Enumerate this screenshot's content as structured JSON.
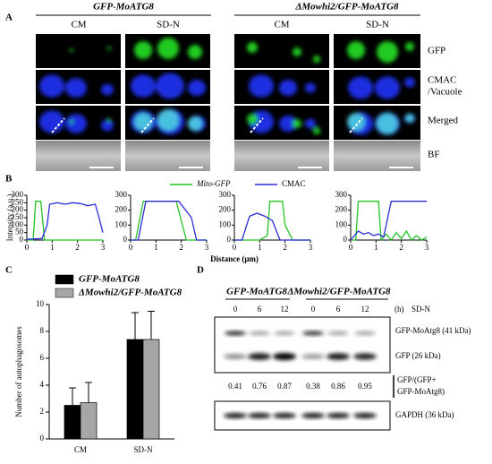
{
  "panel_a": {
    "label": "A",
    "groups": [
      "GFP-MoATG8",
      "ΔMowhi2/GFP-MoATG8"
    ],
    "columns": [
      "CM",
      "SD-N",
      "CM",
      "SD-N"
    ],
    "rows": [
      "GFP",
      "CMAC",
      "/Vacuole",
      "Merged",
      "BF"
    ]
  },
  "panel_b": {
    "label": "B",
    "ylabel": "Intensity (a.u.)",
    "xlabel": "Distance (μm)"
  },
  "panel_c": {
    "label": "C"
  },
  "panel_d": {
    "label": "D",
    "groups": [
      "GFP-MoATG8",
      "ΔMowhi2/GFP-MoATG8"
    ],
    "lanes": [
      "0",
      "6",
      "12",
      "0",
      "6",
      "12"
    ],
    "unit": "(h)",
    "treatment": "SD-N",
    "bands": [
      "GFP-MoAtg8 (41 kDa)",
      "GFP (26 kDa)"
    ],
    "ratio_label": [
      "GFP/(GFP+",
      "GFP-MoAtg8)"
    ],
    "ratios": [
      "0.41",
      "0.76",
      "0.87",
      "0.38",
      "0.86",
      "0.95"
    ],
    "loading": "GAPDH (36 kDa)"
  },
  "chart_data": [
    {
      "type": "line",
      "xlim": [
        0,
        3
      ],
      "ylim": [
        0,
        300
      ],
      "xticks": [
        0,
        1,
        2,
        3
      ],
      "yticks": [
        0,
        50,
        100,
        150,
        200,
        250,
        300
      ],
      "series": [
        {
          "name": "Mito-GFP",
          "color": "#22c422",
          "x": [
            0,
            0.25,
            0.35,
            0.55,
            0.7,
            3
          ],
          "values": [
            0,
            0,
            260,
            260,
            0,
            0
          ]
        },
        {
          "name": "CMAC",
          "color": "#2b2bd9",
          "x": [
            0,
            0.6,
            0.8,
            0.9,
            1.2,
            1.5,
            1.8,
            2.1,
            2.4,
            2.7,
            2.85,
            3
          ],
          "values": [
            5,
            10,
            100,
            240,
            250,
            240,
            250,
            245,
            230,
            240,
            150,
            50
          ]
        }
      ]
    },
    {
      "type": "line",
      "xlim": [
        0,
        3
      ],
      "ylim": [
        0,
        300
      ],
      "xticks": [
        0,
        1,
        2,
        3
      ],
      "yticks": [
        0,
        100,
        200,
        300
      ],
      "series": [
        {
          "color": "#22c422",
          "x": [
            0,
            0.2,
            0.5,
            1.8,
            2.2,
            3
          ],
          "values": [
            0,
            0,
            260,
            260,
            0,
            0
          ]
        },
        {
          "color": "#2b2bd9",
          "x": [
            0,
            0.3,
            0.6,
            1.9,
            2.4,
            2.6,
            3
          ],
          "values": [
            0,
            0,
            260,
            260,
            150,
            0,
            0
          ]
        }
      ]
    },
    {
      "type": "line",
      "xlim": [
        0,
        3
      ],
      "ylim": [
        0,
        300
      ],
      "xticks": [
        0,
        1,
        2,
        3
      ],
      "yticks": [
        0,
        100,
        200,
        300
      ],
      "series": [
        {
          "color": "#22c422",
          "x": [
            0,
            1.0,
            1.3,
            1.4,
            1.9,
            2.0,
            2.3,
            3
          ],
          "values": [
            0,
            0,
            30,
            260,
            260,
            100,
            0,
            0
          ]
        },
        {
          "color": "#2b2bd9",
          "x": [
            0,
            0.3,
            0.6,
            0.9,
            1.2,
            1.5,
            1.8,
            2.5,
            3
          ],
          "values": [
            0,
            0,
            160,
            180,
            160,
            130,
            0,
            0,
            0
          ]
        }
      ]
    },
    {
      "type": "line",
      "xlim": [
        0,
        3
      ],
      "ylim": [
        0,
        300
      ],
      "xticks": [
        0,
        1,
        2,
        3
      ],
      "yticks": [
        0,
        100,
        200,
        300
      ],
      "series": [
        {
          "color": "#22c422",
          "x": [
            0,
            0.2,
            0.3,
            1.1,
            1.2,
            1.4,
            1.6,
            1.8,
            2.0,
            2.2,
            2.4,
            2.6,
            2.8,
            3
          ],
          "values": [
            0,
            0,
            260,
            260,
            0,
            40,
            0,
            50,
            10,
            60,
            0,
            30,
            0,
            20
          ]
        },
        {
          "color": "#2b2bd9",
          "x": [
            0,
            0.3,
            0.5,
            0.7,
            0.9,
            1.1,
            1.3,
            1.5,
            1.6,
            3
          ],
          "values": [
            0,
            60,
            40,
            50,
            30,
            40,
            20,
            180,
            260,
            260
          ]
        }
      ]
    },
    {
      "type": "bar",
      "ylabel": "Number of autophagosomes",
      "categories": [
        "CM",
        "SD-N"
      ],
      "ylim": [
        0,
        10
      ],
      "yticks": [
        0,
        2,
        4,
        6,
        8,
        10
      ],
      "series": [
        {
          "name": "GFP-MoATG8",
          "color": "#000000",
          "values": [
            2.5,
            7.4
          ],
          "errors": [
            1.3,
            2.0
          ]
        },
        {
          "name": "ΔMowhi2/GFP-MoATG8",
          "color": "#a6a6a6",
          "values": [
            2.7,
            7.4
          ],
          "errors": [
            1.5,
            2.1
          ]
        }
      ]
    }
  ]
}
